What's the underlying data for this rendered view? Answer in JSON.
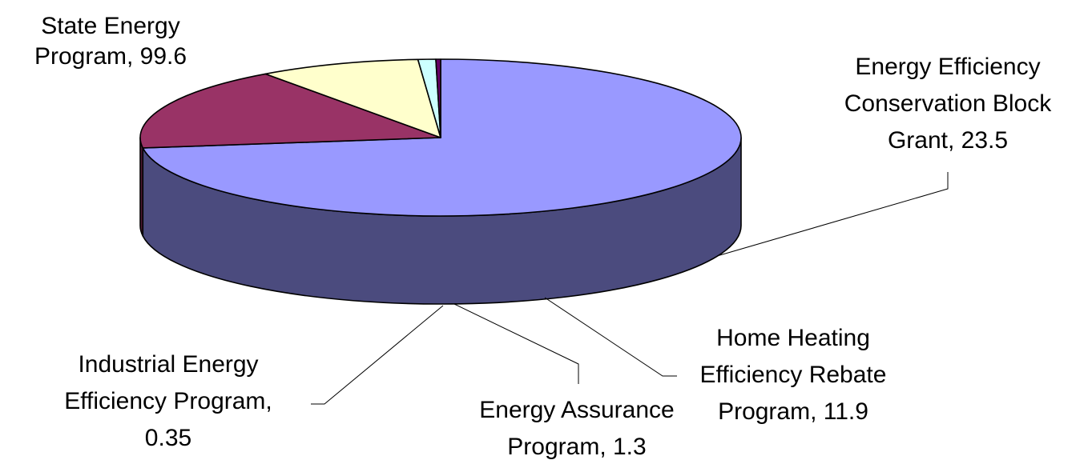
{
  "chart_data": {
    "type": "pie",
    "style": "3d",
    "title": "",
    "legend": "none",
    "slices": [
      {
        "label_lines": [
          "State Energy",
          "Program, 99.6"
        ],
        "name": "State Energy Program",
        "value": 99.6,
        "color_top": "#9999ff",
        "color_side": "#4b4b7e"
      },
      {
        "label_lines": [
          "Energy Efficiency",
          "Conservation Block",
          "Grant, 23.5"
        ],
        "name": "Energy Efficiency Conservation Block Grant",
        "value": 23.5,
        "color_top": "#993366",
        "color_side": "#4c1a33"
      },
      {
        "label_lines": [
          "Home Heating",
          "Efficiency Rebate",
          "Program, 11.9"
        ],
        "name": "Home Heating Efficiency Rebate Program",
        "value": 11.9,
        "color_top": "#ffffcc",
        "color_side": "#808066"
      },
      {
        "label_lines": [
          "Energy Assurance",
          "Program, 1.3"
        ],
        "name": "Energy Assurance Program",
        "value": 1.3,
        "color_top": "#ccffff",
        "color_side": "#668080"
      },
      {
        "label_lines": [
          "Industrial Energy",
          "Efficiency Program,",
          "0.35"
        ],
        "name": "Industrial Energy Efficiency Program",
        "value": 0.35,
        "color_top": "#660066",
        "color_side": "#330033"
      }
    ]
  }
}
